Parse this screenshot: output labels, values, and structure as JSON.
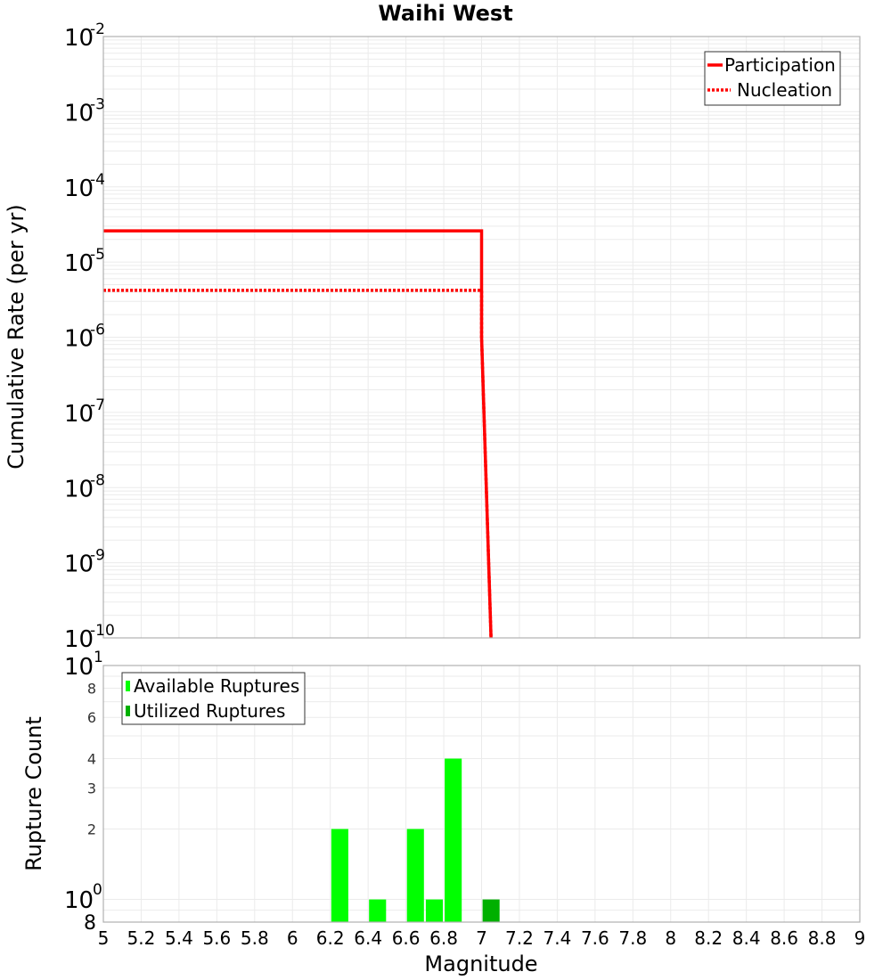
{
  "title": "Waihi West",
  "chart_data": [
    {
      "type": "line",
      "title": "Waihi West",
      "xlabel": "Magnitude",
      "ylabel": "Cumulative Rate (per yr)",
      "xlim": [
        5,
        9
      ],
      "ylim": [
        1e-10,
        0.01
      ],
      "yscale": "log",
      "grid": true,
      "legend_position": "upper right",
      "y_ticks": [
        "10^-2",
        "10^-3",
        "10^-4",
        "10^-5",
        "10^-6",
        "10^-7",
        "10^-8",
        "10^-9",
        "10^-10"
      ],
      "series": [
        {
          "name": "Participation",
          "style": "solid",
          "color": "#ff0000",
          "x": [
            5.0,
            7.0,
            7.0,
            7.05
          ],
          "y": [
            2.6e-05,
            2.6e-05,
            1e-06,
            1e-10
          ]
        },
        {
          "name": "Nucleation",
          "style": "dotted",
          "color": "#ff0000",
          "x": [
            5.0,
            7.0,
            7.0,
            7.05
          ],
          "y": [
            4.2e-06,
            4.2e-06,
            1e-06,
            1e-10
          ]
        }
      ]
    },
    {
      "type": "bar",
      "xlabel": "Magnitude",
      "ylabel": "Rupture Count",
      "xlim": [
        5,
        9
      ],
      "ylim": [
        0.8,
        10
      ],
      "yscale": "log",
      "grid": true,
      "legend_position": "upper left",
      "x_ticks": [
        "5",
        "5.2",
        "5.4",
        "5.6",
        "5.8",
        "6",
        "6.2",
        "6.4",
        "6.6",
        "6.8",
        "7",
        "7.2",
        "7.4",
        "7.6",
        "7.8",
        "8",
        "8.2",
        "8.4",
        "8.6",
        "8.8",
        "9"
      ],
      "y_ticks": [
        "8",
        "10^0",
        "2",
        "3",
        "4",
        "6",
        "8",
        "10^1"
      ],
      "series": [
        {
          "name": "Available Ruptures",
          "color": "#00ff00",
          "x": [
            6.25,
            6.45,
            6.65,
            6.75,
            6.85
          ],
          "values": [
            2,
            1,
            2,
            1,
            4
          ]
        },
        {
          "name": "Utilized Ruptures",
          "color": "#00b000",
          "x": [
            7.05
          ],
          "values": [
            1
          ]
        }
      ]
    }
  ],
  "top": {
    "ylabel": "Cumulative Rate (per yr)",
    "legend": [
      {
        "label": "Participation"
      },
      {
        "label": "Nucleation"
      }
    ]
  },
  "bottom": {
    "ylabel": "Rupture Count",
    "xlabel": "Magnitude",
    "legend": [
      {
        "label": "Available Ruptures"
      },
      {
        "label": "Utilized Ruptures"
      }
    ]
  },
  "colors": {
    "participation": "#ff0000",
    "nucleation": "#ff0000",
    "available": "#00ff00",
    "utilized": "#00b000",
    "grid": "#ebebeb",
    "frame": "#b0b0b0"
  }
}
